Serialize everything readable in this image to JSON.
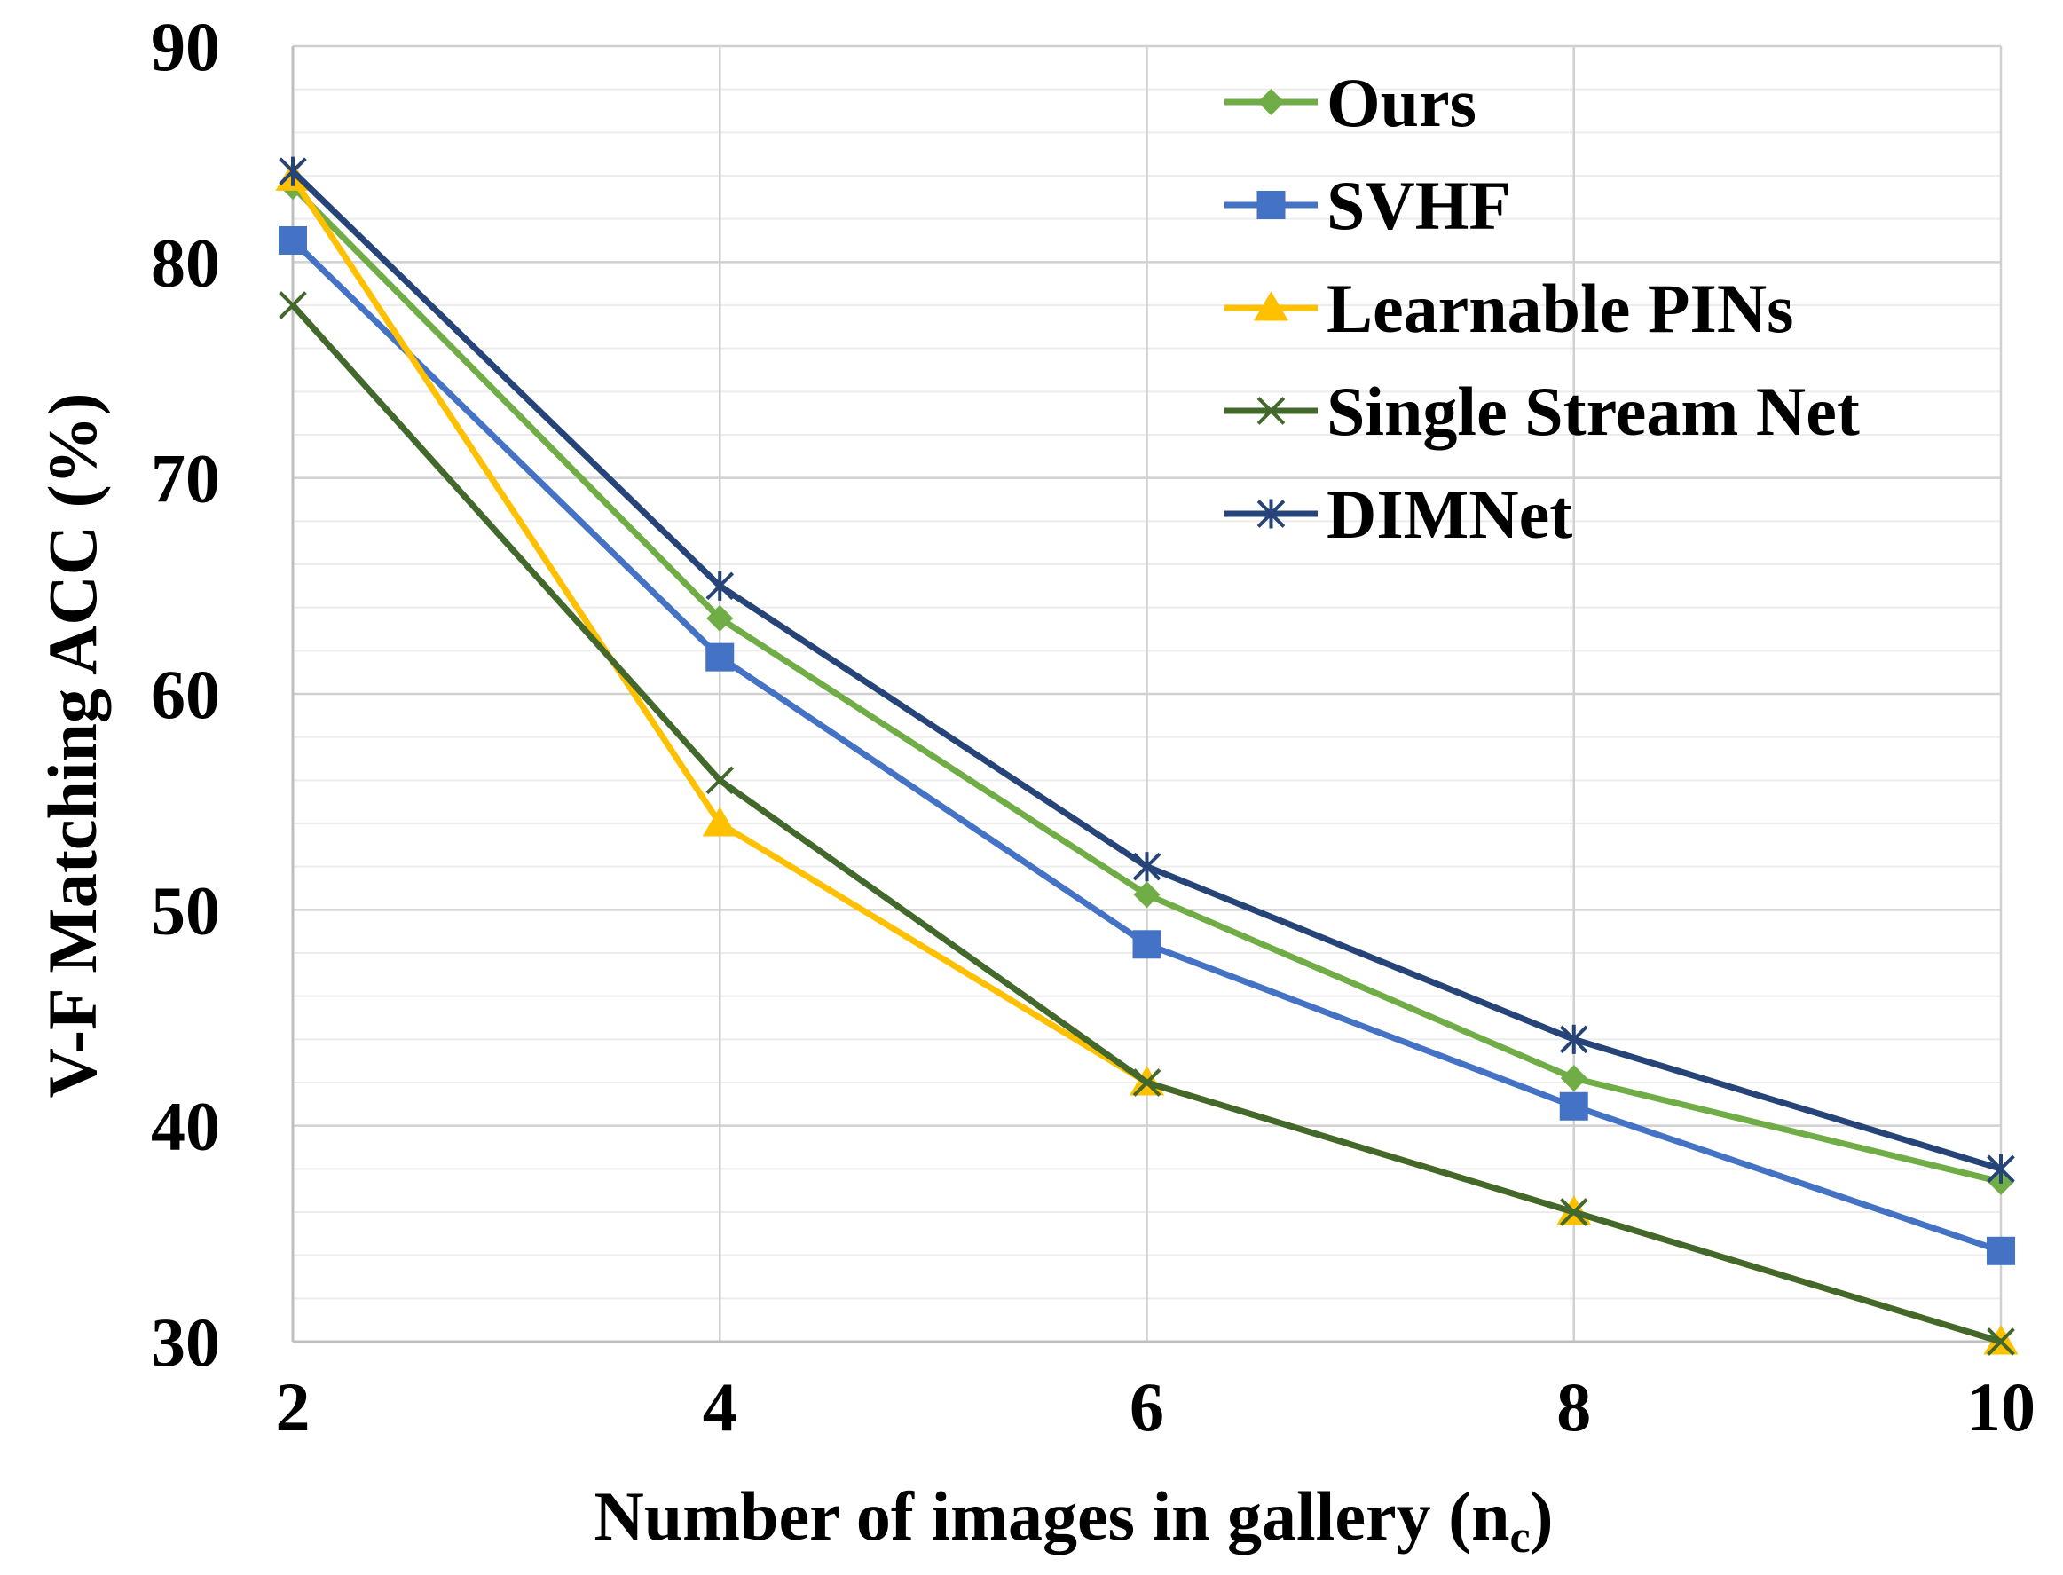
{
  "chart_data": {
    "type": "line",
    "title": "",
    "xlabel": "Number of images in gallery (n",
    "xlabel_subscript": "c",
    "xlabel_close": ")",
    "ylabel": "V-F Matching ACC (%)",
    "x": [
      2,
      4,
      6,
      8,
      10
    ],
    "x_tick_labels": [
      "2",
      "4",
      "6",
      "8",
      "10"
    ],
    "xlim": [
      2,
      10
    ],
    "y_ticks": [
      30,
      40,
      50,
      60,
      70,
      80,
      90
    ],
    "y_tick_labels": [
      "30",
      "40",
      "50",
      "60",
      "70",
      "80",
      "90"
    ],
    "ylim": [
      30,
      90
    ],
    "grid": true,
    "legend_position": "top-right",
    "series": [
      {
        "name": "Ours",
        "values": [
          83.5,
          63.5,
          50.7,
          42.2,
          37.4
        ],
        "color": "#70AD47",
        "marker": "diamond"
      },
      {
        "name": "SVHF",
        "values": [
          81.0,
          61.7,
          48.4,
          40.9,
          34.2
        ],
        "color": "#4472C4",
        "marker": "square"
      },
      {
        "name": "Learnable PINs",
        "values": [
          83.9,
          54.0,
          42.0,
          36.0,
          30.0
        ],
        "color": "#FFC000",
        "marker": "triangle"
      },
      {
        "name": "Single Stream Net",
        "values": [
          78.0,
          56.0,
          42.0,
          36.0,
          30.0
        ],
        "color": "#43682B",
        "marker": "x"
      },
      {
        "name": "DIMNet",
        "values": [
          84.2,
          65.0,
          52.0,
          44.0,
          38.0
        ],
        "color": "#264478",
        "marker": "star"
      }
    ]
  }
}
